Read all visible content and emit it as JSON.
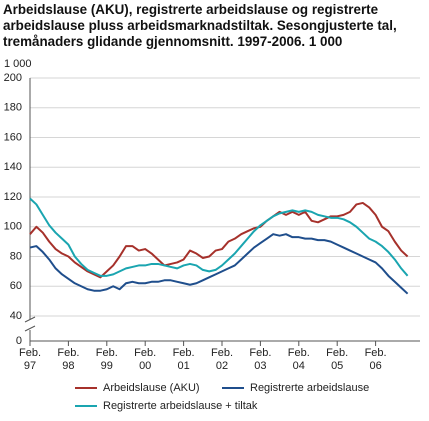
{
  "chart_data": {
    "type": "line",
    "title": "Arbeidslause (AKU), registrerte arbeidslause og registrerte arbeidslause pluss arbeidsmarknadstiltak. Sesongjusterte tal, tremånaders glidande gjennomsnitt. 1997-2006. 1 000",
    "y_label": "1 000",
    "categories": [
      "Feb. 97",
      null,
      null,
      null,
      null,
      null,
      "Feb. 98",
      null,
      null,
      null,
      null,
      null,
      "Feb. 99",
      null,
      null,
      null,
      null,
      null,
      "Feb. 00",
      null,
      null,
      null,
      null,
      null,
      "Feb. 01",
      null,
      null,
      null,
      null,
      null,
      "Feb. 02",
      null,
      null,
      null,
      null,
      null,
      "Feb. 03",
      null,
      null,
      null,
      null,
      null,
      "Feb. 04",
      null,
      null,
      null,
      null,
      null,
      "Feb. 05",
      null,
      null,
      null,
      null,
      null,
      "Feb. 06",
      null,
      null,
      null,
      null,
      null
    ],
    "series": [
      {
        "name": "Arbeidslause (AKU)",
        "color": "#a6312b",
        "values": [
          95,
          100,
          96,
          90,
          85,
          82,
          80,
          76,
          73,
          70,
          68,
          66,
          70,
          74,
          80,
          87,
          87,
          84,
          85,
          82,
          78,
          74,
          75,
          76,
          78,
          84,
          82,
          79,
          80,
          84,
          85,
          90,
          92,
          95,
          97,
          99,
          100,
          104,
          107,
          110,
          108,
          110,
          108,
          110,
          104,
          103,
          105,
          107,
          107,
          108,
          110,
          115,
          116,
          113,
          108,
          100,
          97,
          90,
          84,
          80
        ]
      },
      {
        "name": "Registrerte arbeidslause",
        "color": "#1f4e8c",
        "values": [
          86,
          87,
          83,
          78,
          72,
          68,
          65,
          62,
          60,
          58,
          57,
          57,
          58,
          60,
          58,
          62,
          63,
          62,
          62,
          63,
          63,
          64,
          64,
          63,
          62,
          61,
          62,
          64,
          66,
          68,
          70,
          72,
          74,
          78,
          82,
          86,
          89,
          92,
          95,
          94,
          95,
          93,
          93,
          92,
          92,
          91,
          91,
          90,
          88,
          86,
          84,
          82,
          80,
          78,
          76,
          72,
          67,
          63,
          59,
          55
        ]
      },
      {
        "name": "Registrerte arbeidslause + tiltak",
        "color": "#1aa5b0",
        "values": [
          119,
          115,
          108,
          101,
          96,
          92,
          88,
          80,
          75,
          71,
          69,
          67,
          67,
          68,
          70,
          72,
          73,
          74,
          74,
          75,
          75,
          74,
          73,
          72,
          74,
          75,
          74,
          71,
          70,
          71,
          74,
          78,
          82,
          87,
          92,
          97,
          101,
          104,
          107,
          109,
          110,
          111,
          110,
          111,
          110,
          108,
          107,
          106,
          106,
          105,
          103,
          100,
          96,
          92,
          90,
          87,
          83,
          78,
          72,
          67
        ]
      }
    ],
    "ylim": [
      0,
      200
    ],
    "yticks": [
      0,
      40,
      60,
      80,
      100,
      120,
      140,
      160,
      180,
      200
    ],
    "axis_break": true,
    "grid": true
  }
}
